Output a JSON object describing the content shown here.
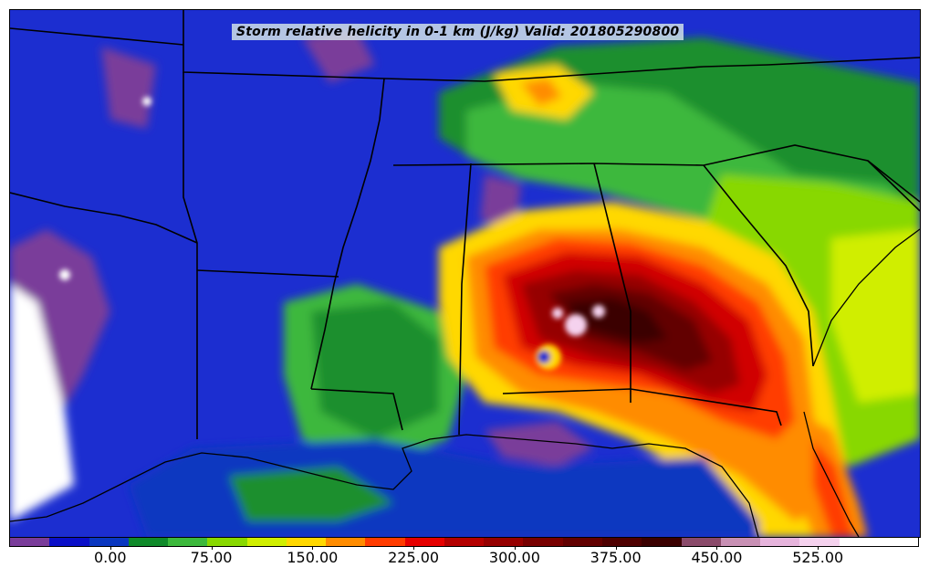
{
  "map": {
    "title": "Storm relative helicity in 0-1 km (J/kg) Valid: 201805290800",
    "type": "filled-contour weather map",
    "region": "Southeastern United States",
    "borders": "state boundaries and coastlines in black"
  },
  "colorbar": {
    "colors": [
      "#7a3c9a",
      "#0a0fc8",
      "#0a37c0",
      "#0f8a2a",
      "#3cb83c",
      "#88d800",
      "#d0ee00",
      "#ffd800",
      "#ff8c00",
      "#ff3c00",
      "#e60000",
      "#b40000",
      "#960000",
      "#780000",
      "#620000",
      "#4e0000",
      "#3a0000",
      "#8a4a6a",
      "#c890b4",
      "#e6b4dc",
      "#f5d2ee",
      "#ffffff",
      "#ffffff"
    ],
    "labels": [
      "0.00",
      "75.00",
      "150.00",
      "225.00",
      "300.00",
      "375.00",
      "450.00",
      "525.00"
    ],
    "label_values": [
      0,
      75,
      150,
      225,
      300,
      375,
      450,
      525
    ],
    "min": -75,
    "max": 600,
    "interval": 25
  },
  "icons": {
    "map": "weather-map-icon"
  }
}
